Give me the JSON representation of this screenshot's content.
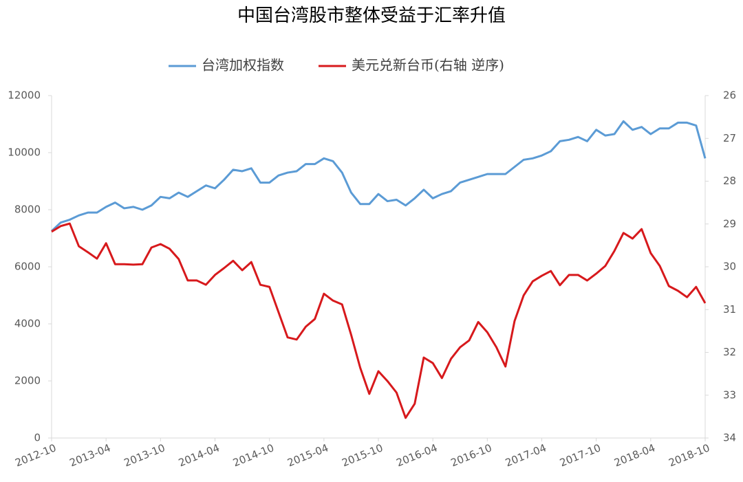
{
  "chart_data": {
    "type": "line",
    "title": "中国台湾股市整体受益于汇率升值",
    "categories": [
      "2012-10",
      null,
      null,
      null,
      null,
      null,
      "2013-04",
      null,
      null,
      null,
      null,
      null,
      "2013-10",
      null,
      null,
      null,
      null,
      null,
      "2014-04",
      null,
      null,
      null,
      null,
      null,
      "2014-10",
      null,
      null,
      null,
      null,
      null,
      "2015-04",
      null,
      null,
      null,
      null,
      null,
      "2015-10",
      null,
      null,
      null,
      null,
      null,
      "2016-04",
      null,
      null,
      null,
      null,
      null,
      "2016-10",
      null,
      null,
      null,
      null,
      null,
      "2017-04",
      null,
      null,
      null,
      null,
      null,
      "2017-10",
      null,
      null,
      null,
      null,
      null,
      "2018-04",
      null,
      null,
      null,
      null,
      null,
      "2018-10"
    ],
    "series": [
      {
        "name": "台湾加权指数",
        "color": "#5b9bd5",
        "axis": "y",
        "values": [
          7250,
          7550,
          7650,
          7800,
          7900,
          7900,
          8100,
          8250,
          8050,
          8100,
          8000,
          8150,
          8450,
          8400,
          8600,
          8450,
          8650,
          8850,
          8750,
          9050,
          9400,
          9350,
          9450,
          8950,
          8950,
          9200,
          9300,
          9350,
          9600,
          9600,
          9800,
          9700,
          9300,
          8600,
          8200,
          8200,
          8550,
          8300,
          8350,
          8150,
          8400,
          8700,
          8400,
          8550,
          8650,
          8950,
          9050,
          9150,
          9250,
          9250,
          9250,
          9500,
          9750,
          9800,
          9900,
          10050,
          10400,
          10450,
          10550,
          10400,
          10800,
          10600,
          10650,
          11100,
          10800,
          10900,
          10650,
          10850,
          10850,
          11050,
          11050,
          10950,
          9800
        ]
      },
      {
        "name": "美元兑新台币(右轴 逆序)",
        "color": "#d7191c",
        "axis": "y2",
        "values": [
          29.18,
          29.05,
          28.99,
          29.52,
          29.66,
          29.81,
          29.45,
          29.94,
          29.94,
          29.95,
          29.94,
          29.55,
          29.47,
          29.58,
          29.82,
          30.32,
          30.32,
          30.42,
          30.19,
          30.03,
          29.86,
          30.08,
          29.89,
          30.42,
          30.47,
          31.06,
          31.65,
          31.7,
          31.4,
          31.22,
          30.63,
          30.79,
          30.88,
          31.59,
          32.36,
          32.97,
          32.44,
          32.67,
          32.94,
          33.53,
          33.2,
          32.12,
          32.25,
          32.6,
          32.15,
          31.88,
          31.72,
          31.29,
          31.53,
          31.88,
          32.33,
          31.27,
          30.67,
          30.34,
          30.21,
          30.1,
          30.43,
          30.19,
          30.19,
          30.32,
          30.16,
          29.98,
          29.63,
          29.21,
          29.34,
          29.12,
          29.68,
          29.98,
          30.45,
          30.56,
          30.71,
          30.47,
          30.85
        ]
      }
    ],
    "ylim": [
      0,
      12000
    ],
    "yticks": [
      0,
      2000,
      4000,
      6000,
      8000,
      10000,
      12000
    ],
    "y2lim": [
      26,
      34
    ],
    "y2ticks": [
      26,
      27,
      28,
      29,
      30,
      31,
      32,
      33,
      34
    ],
    "y2_reversed": true,
    "grid": false,
    "legend": "top"
  }
}
